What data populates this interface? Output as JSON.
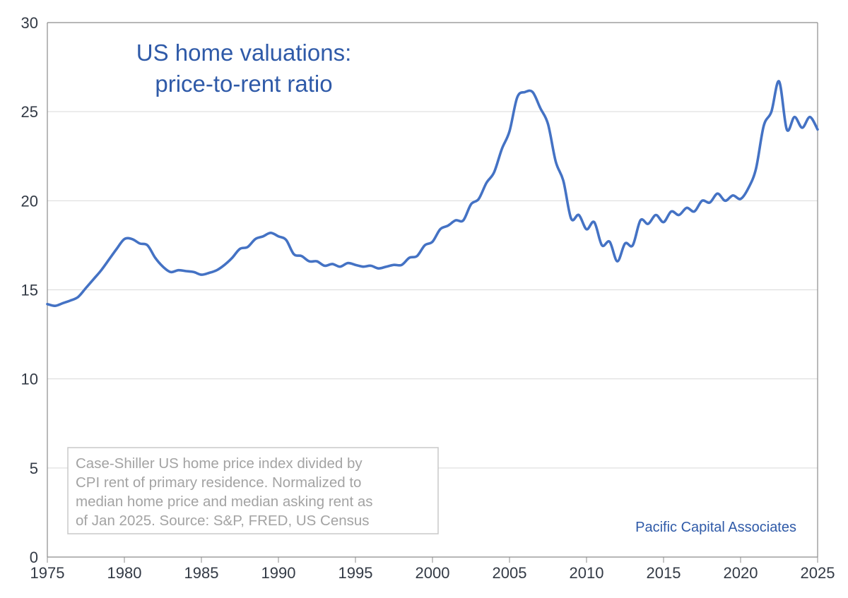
{
  "colors": {
    "series": "#4472c4",
    "title": "#2f5aa8",
    "grid": "#d9d9d9",
    "axis": "#8c8c8c",
    "note_text": "#a3a3a3",
    "note_border": "#c8c8c8"
  },
  "chart_data": {
    "type": "line",
    "title_lines": [
      "US home valuations:",
      "price-to-rent ratio"
    ],
    "xlabel": "",
    "ylabel": "",
    "xlim": [
      1975,
      2025
    ],
    "ylim": [
      0,
      30
    ],
    "x_ticks": [
      1975,
      1980,
      1985,
      1990,
      1995,
      2000,
      2005,
      2010,
      2015,
      2020,
      2025
    ],
    "y_ticks": [
      0,
      5,
      10,
      15,
      20,
      25,
      30
    ],
    "grid": "horizontal",
    "note_lines": [
      "Case-Shiller US home price index divided by",
      "CPI rent of primary residence. Normalized to",
      "median home price and median asking rent as",
      "of Jan 2025. Source: S&P, FRED, US Census"
    ],
    "credit": "Pacific Capital Associates",
    "series": [
      {
        "name": "Price-to-rent ratio",
        "x": [
          1975.0,
          1975.5,
          1976.0,
          1976.5,
          1977.0,
          1977.5,
          1978.0,
          1978.5,
          1979.0,
          1979.5,
          1980.0,
          1980.5,
          1981.0,
          1981.5,
          1982.0,
          1982.5,
          1983.0,
          1983.5,
          1984.0,
          1984.5,
          1985.0,
          1985.5,
          1986.0,
          1986.5,
          1987.0,
          1987.5,
          1988.0,
          1988.5,
          1989.0,
          1989.5,
          1990.0,
          1990.5,
          1991.0,
          1991.5,
          1992.0,
          1992.5,
          1993.0,
          1993.5,
          1994.0,
          1994.5,
          1995.0,
          1995.5,
          1996.0,
          1996.5,
          1997.0,
          1997.5,
          1998.0,
          1998.5,
          1999.0,
          1999.5,
          2000.0,
          2000.5,
          2001.0,
          2001.5,
          2002.0,
          2002.5,
          2003.0,
          2003.5,
          2004.0,
          2004.5,
          2005.0,
          2005.5,
          2006.0,
          2006.5,
          2007.0,
          2007.5,
          2008.0,
          2008.5,
          2009.0,
          2009.5,
          2010.0,
          2010.5,
          2011.0,
          2011.5,
          2012.0,
          2012.5,
          2013.0,
          2013.5,
          2014.0,
          2014.5,
          2015.0,
          2015.5,
          2016.0,
          2016.5,
          2017.0,
          2017.5,
          2018.0,
          2018.5,
          2019.0,
          2019.5,
          2020.0,
          2020.5,
          2021.0,
          2021.5,
          2022.0,
          2022.5,
          2023.0,
          2023.5,
          2024.0,
          2024.5,
          2025.0
        ],
        "values": [
          14.2,
          14.1,
          14.25,
          14.4,
          14.6,
          15.1,
          15.6,
          16.1,
          16.7,
          17.3,
          17.85,
          17.85,
          17.6,
          17.5,
          16.8,
          16.3,
          16.0,
          16.1,
          16.05,
          16.0,
          15.85,
          15.95,
          16.1,
          16.4,
          16.8,
          17.3,
          17.4,
          17.85,
          18.0,
          18.2,
          18.0,
          17.8,
          17.0,
          16.9,
          16.6,
          16.6,
          16.35,
          16.45,
          16.3,
          16.5,
          16.4,
          16.3,
          16.35,
          16.2,
          16.3,
          16.4,
          16.4,
          16.8,
          16.9,
          17.5,
          17.7,
          18.4,
          18.6,
          18.9,
          18.9,
          19.8,
          20.1,
          21.0,
          21.6,
          22.9,
          23.9,
          25.8,
          26.1,
          26.1,
          25.2,
          24.3,
          22.2,
          21.1,
          19.0,
          19.2,
          18.4,
          18.8,
          17.5,
          17.7,
          16.6,
          17.6,
          17.5,
          18.9,
          18.7,
          19.2,
          18.8,
          19.4,
          19.2,
          19.6,
          19.4,
          20.0,
          19.9,
          20.4,
          20.0,
          20.3,
          20.1,
          20.7,
          21.8,
          24.2,
          25.0,
          26.7,
          24.0,
          24.7,
          24.1,
          24.7,
          24.0
        ]
      }
    ]
  }
}
